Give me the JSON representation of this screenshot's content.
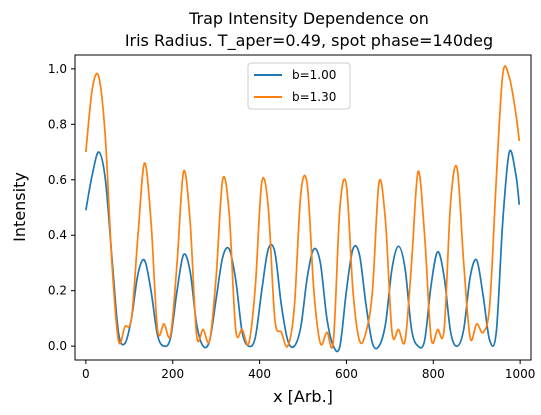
{
  "chart_data": {
    "type": "line",
    "title_line1": "Trap Intensity Dependence on",
    "title_line2": "Iris Radius. T_aper=0.49, spot phase=140deg",
    "xlabel": "x [Arb.]",
    "ylabel": "Intensity",
    "xlim": [
      -25,
      1025
    ],
    "ylim": [
      -0.05,
      1.05
    ],
    "xticks": [
      0,
      200,
      400,
      600,
      800,
      1000
    ],
    "yticks": [
      0.0,
      0.2,
      0.4,
      0.6,
      0.8,
      1.0
    ],
    "xtick_labels": [
      "0",
      "200",
      "400",
      "600",
      "800",
      "1000"
    ],
    "ytick_labels": [
      "0.0",
      "0.2",
      "0.4",
      "0.6",
      "0.8",
      "1.0"
    ],
    "grid": false,
    "legend_position": "top-center",
    "series": [
      {
        "name": "b=1.00",
        "color": "#1f77b4",
        "x": [
          0,
          15,
          30,
          45,
          60,
          75,
          90,
          105,
          120,
          135,
          150,
          165,
          180,
          195,
          210,
          225,
          240,
          255,
          270,
          285,
          300,
          315,
          330,
          345,
          360,
          375,
          390,
          405,
          420,
          435,
          450,
          465,
          480,
          495,
          510,
          525,
          540,
          555,
          570,
          585,
          600,
          615,
          630,
          645,
          660,
          675,
          690,
          705,
          720,
          735,
          750,
          765,
          780,
          795,
          810,
          825,
          840,
          855,
          870,
          885,
          900,
          915,
          930,
          945,
          960,
          975,
          990,
          998
        ],
        "y": [
          0.49,
          0.62,
          0.7,
          0.6,
          0.32,
          0.05,
          0.01,
          0.1,
          0.26,
          0.31,
          0.2,
          0.04,
          0.0,
          0.03,
          0.2,
          0.33,
          0.27,
          0.08,
          0.0,
          0.02,
          0.17,
          0.32,
          0.35,
          0.24,
          0.05,
          0.0,
          0.03,
          0.2,
          0.35,
          0.34,
          0.15,
          0.02,
          0.0,
          0.07,
          0.25,
          0.35,
          0.3,
          0.1,
          0.0,
          0.0,
          0.2,
          0.35,
          0.33,
          0.15,
          0.01,
          0.0,
          0.08,
          0.28,
          0.36,
          0.28,
          0.06,
          0.0,
          0.02,
          0.22,
          0.34,
          0.25,
          0.05,
          0.0,
          0.06,
          0.25,
          0.31,
          0.18,
          0.02,
          0.05,
          0.45,
          0.7,
          0.62,
          0.51
        ]
      },
      {
        "name": "b=1.30",
        "color": "#ff7f0e",
        "x": [
          0,
          15,
          30,
          45,
          60,
          75,
          90,
          105,
          120,
          135,
          150,
          165,
          180,
          195,
          210,
          225,
          240,
          255,
          270,
          285,
          300,
          315,
          330,
          345,
          360,
          375,
          390,
          405,
          420,
          435,
          450,
          465,
          480,
          495,
          510,
          525,
          540,
          555,
          570,
          585,
          600,
          615,
          630,
          645,
          660,
          675,
          690,
          705,
          720,
          735,
          750,
          765,
          780,
          795,
          810,
          825,
          840,
          855,
          870,
          885,
          900,
          915,
          930,
          945,
          960,
          975,
          990,
          998
        ],
        "y": [
          0.7,
          0.93,
          0.97,
          0.75,
          0.3,
          0.02,
          0.07,
          0.1,
          0.4,
          0.66,
          0.45,
          0.06,
          0.08,
          0.04,
          0.3,
          0.63,
          0.45,
          0.04,
          0.06,
          0.02,
          0.25,
          0.6,
          0.48,
          0.06,
          0.06,
          0.01,
          0.21,
          0.59,
          0.5,
          0.1,
          0.05,
          0.0,
          0.14,
          0.55,
          0.58,
          0.2,
          0.01,
          0.05,
          0.02,
          0.5,
          0.58,
          0.2,
          0.02,
          0.05,
          0.2,
          0.59,
          0.45,
          0.05,
          0.06,
          0.02,
          0.3,
          0.63,
          0.4,
          0.03,
          0.06,
          0.06,
          0.52,
          0.64,
          0.3,
          0.03,
          0.08,
          0.05,
          0.15,
          0.6,
          0.98,
          0.97,
          0.84,
          0.74
        ]
      }
    ]
  }
}
